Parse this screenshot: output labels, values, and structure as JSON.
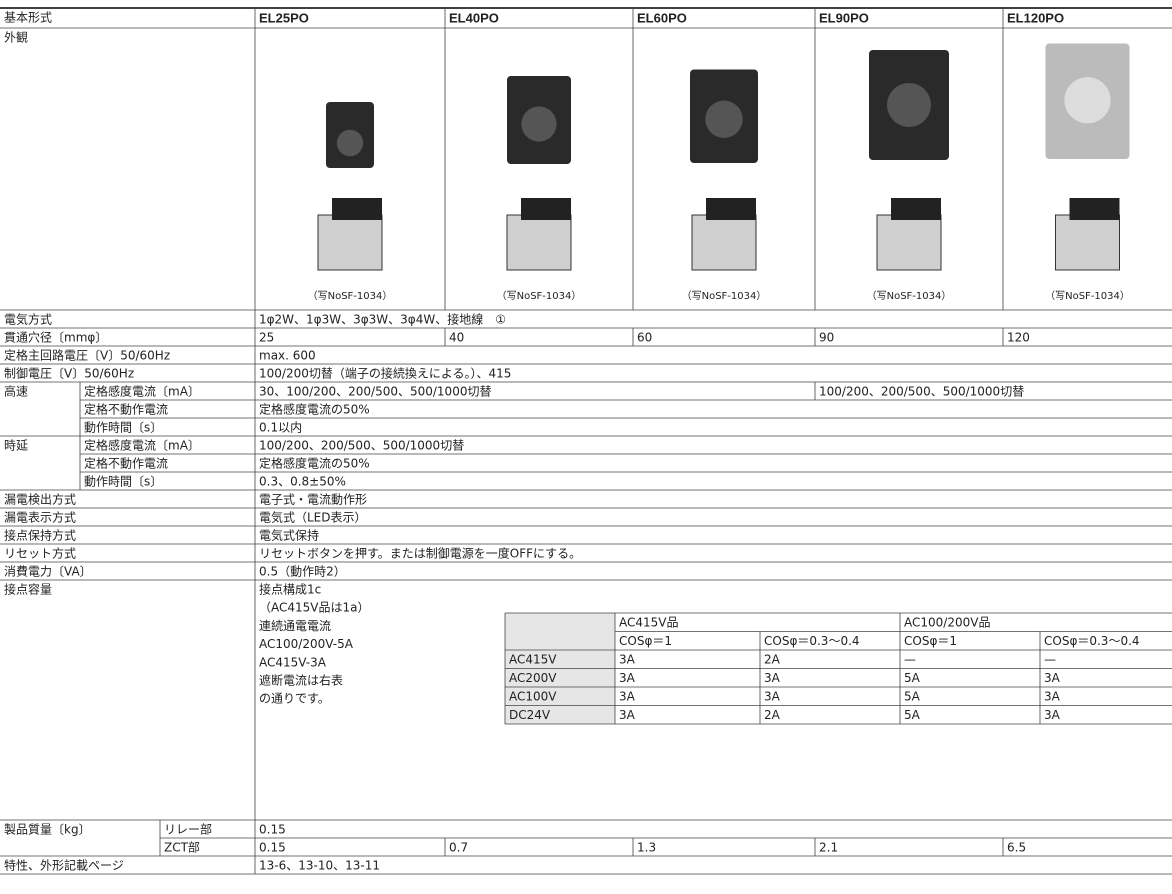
{
  "header": {
    "label": "基本形式",
    "models": [
      "EL25PO",
      "EL40PO",
      "EL60PO",
      "EL90PO",
      "EL120PO"
    ]
  },
  "appearance": {
    "label": "外観",
    "captions": [
      "（写NoSF-1034）",
      "（写NoSF-1034）",
      "（写NoSF-1034）",
      "（写NoSF-1034）",
      "（写NoSF-1034）"
    ]
  },
  "rows": [
    {
      "label": "電気方式",
      "value": "1φ2W、1φ3W、3φ3W、3φ4W、接地線　①"
    },
    {
      "label": "貫通穴径〔mmφ〕",
      "values": [
        "25",
        "40",
        "60",
        "90",
        "120"
      ]
    },
    {
      "label": "定格主回路電圧〔V〕50/60Hz",
      "value": "max. 600"
    },
    {
      "label": "制御電圧〔V〕50/60Hz",
      "value": "100/200切替（端子の接続換えによる。）、415"
    }
  ],
  "high_speed": {
    "label": "高速",
    "rows": [
      {
        "label": "定格感度電流〔mA〕",
        "values": [
          "30、100/200、200/500、500/1000切替",
          "100/200、200/500、500/1000切替"
        ]
      },
      {
        "label": "定格不動作電流",
        "value": "定格感度電流の50%"
      },
      {
        "label": "動作時間〔s〕",
        "value": "0.1以内"
      }
    ]
  },
  "time_delay": {
    "label": "時延",
    "rows": [
      {
        "label": "定格感度電流〔mA〕",
        "value": "100/200、200/500、500/1000切替"
      },
      {
        "label": "定格不動作電流",
        "value": "定格感度電流の50%"
      },
      {
        "label": "動作時間〔s〕",
        "value": "0.3、0.8±50%"
      }
    ]
  },
  "rows2": [
    {
      "label": "漏電検出方式",
      "value": "電子式・電流動作形"
    },
    {
      "label": "漏電表示方式",
      "value": "電気式（LED表示）"
    },
    {
      "label": "接点保持方式",
      "value": "電気式保持"
    },
    {
      "label": "リセット方式",
      "value": "リセットボタンを押す。または制御電源を一度OFFにする。"
    },
    {
      "label": "消費電力〔VA〕",
      "value": "0.5（動作時2）"
    }
  ],
  "contact": {
    "label": "接点容量",
    "notes": [
      "接点構成1c",
      "（AC415V品は1a）",
      "連続通電電流",
      "AC100/200V-5A",
      "AC415V-3A",
      "遮断電流は右表",
      "の通りです。"
    ],
    "table": {
      "groups": [
        "AC415V品",
        "AC100/200V品"
      ],
      "cos": [
        "COSφ＝1",
        "COSφ＝0.3〜0.4",
        "COSφ＝1",
        "COSφ＝0.3〜0.4"
      ],
      "rows": [
        {
          "voltage": "AC415V",
          "values": [
            "3A",
            "2A",
            "—",
            "—"
          ]
        },
        {
          "voltage": "AC200V",
          "values": [
            "3A",
            "3A",
            "5A",
            "3A"
          ]
        },
        {
          "voltage": "AC100V",
          "values": [
            "3A",
            "3A",
            "5A",
            "3A"
          ]
        },
        {
          "voltage": "DC24V",
          "values": [
            "3A",
            "2A",
            "5A",
            "3A"
          ]
        }
      ]
    }
  },
  "mass": {
    "label": "製品質量〔kg〕",
    "relay": {
      "label": "リレー部",
      "value": "0.15"
    },
    "zct": {
      "label": "ZCT部",
      "values": [
        "0.15",
        "0.7",
        "1.3",
        "2.1",
        "6.5"
      ]
    }
  },
  "pages": {
    "label": "特性、外形記載ページ",
    "value": "13-6、13-10、13-11"
  }
}
